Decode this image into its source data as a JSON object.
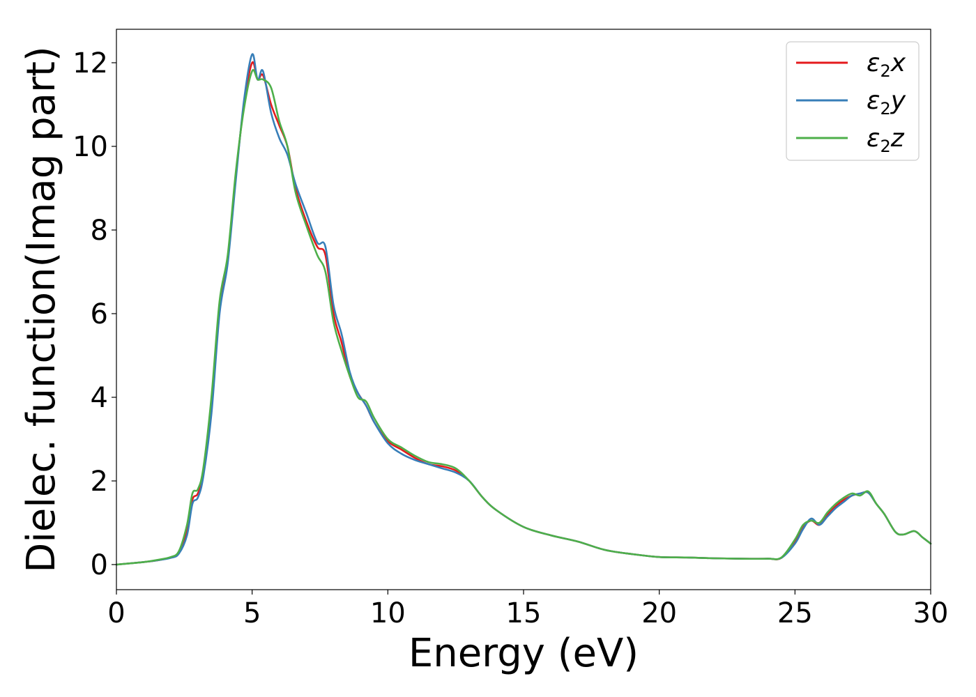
{
  "chart_data": {
    "type": "line",
    "xlabel": "Energy (eV)",
    "ylabel": "Dielec. function(Imag part)",
    "xlim": [
      0,
      30
    ],
    "ylim": [
      -0.6,
      12.8
    ],
    "xticks": [
      0,
      5,
      10,
      15,
      20,
      25,
      30
    ],
    "yticks": [
      0,
      2,
      4,
      6,
      8,
      10,
      12
    ],
    "grid": false,
    "legend_position": "top-right",
    "series": [
      {
        "name": "ε2x",
        "legend": {
          "base": "ε",
          "sub": "2",
          "suffix": "x"
        },
        "color": "#e41a1c",
        "x": [
          0,
          1,
          1.5,
          2,
          2.3,
          2.6,
          2.8,
          3.0,
          3.2,
          3.5,
          3.8,
          4.1,
          4.4,
          4.7,
          5.0,
          5.2,
          5.4,
          5.7,
          6.0,
          6.3,
          6.6,
          7.0,
          7.4,
          7.7,
          8.0,
          8.3,
          8.6,
          8.9,
          9.2,
          9.5,
          10.0,
          10.5,
          11.0,
          11.5,
          12.0,
          12.5,
          13.0,
          13.5,
          14.0,
          15.0,
          16.0,
          17.0,
          18.0,
          19.0,
          20.0,
          21.0,
          22.0,
          23.0,
          24.0,
          24.5,
          25.0,
          25.3,
          25.6,
          25.9,
          26.2,
          26.5,
          26.8,
          27.1,
          27.4,
          27.7,
          28.0,
          28.3,
          28.7,
          29.0,
          29.4,
          29.7,
          30.0
        ],
        "y": [
          0.0,
          0.06,
          0.1,
          0.17,
          0.28,
          0.8,
          1.55,
          1.7,
          2.2,
          3.8,
          6.2,
          7.3,
          9.3,
          11.0,
          12.0,
          11.6,
          11.7,
          11.0,
          10.5,
          10.0,
          9.0,
          8.2,
          7.6,
          7.4,
          6.0,
          5.3,
          4.5,
          4.1,
          3.8,
          3.4,
          2.95,
          2.75,
          2.55,
          2.4,
          2.35,
          2.25,
          2.0,
          1.6,
          1.3,
          0.9,
          0.7,
          0.55,
          0.35,
          0.25,
          0.18,
          0.17,
          0.15,
          0.14,
          0.14,
          0.16,
          0.55,
          0.9,
          1.05,
          0.95,
          1.2,
          1.4,
          1.55,
          1.65,
          1.7,
          1.72,
          1.45,
          1.2,
          0.78,
          0.72,
          0.8,
          0.65,
          0.5
        ]
      },
      {
        "name": "ε2y",
        "legend": {
          "base": "ε",
          "sub": "2",
          "suffix": "y"
        },
        "color": "#377eb8",
        "x": [
          0,
          1,
          1.5,
          2,
          2.3,
          2.6,
          2.8,
          3.0,
          3.2,
          3.5,
          3.8,
          4.1,
          4.4,
          4.7,
          5.0,
          5.2,
          5.4,
          5.7,
          6.0,
          6.3,
          6.6,
          7.0,
          7.4,
          7.7,
          8.0,
          8.3,
          8.6,
          8.9,
          9.2,
          9.5,
          10.0,
          10.5,
          11.0,
          11.5,
          12.0,
          12.5,
          13.0,
          13.5,
          14.0,
          15.0,
          16.0,
          17.0,
          18.0,
          19.0,
          20.0,
          21.0,
          22.0,
          23.0,
          24.0,
          24.5,
          25.0,
          25.3,
          25.6,
          25.9,
          26.2,
          26.5,
          26.8,
          27.1,
          27.4,
          27.7,
          28.0,
          28.3,
          28.7,
          29.0,
          29.4,
          29.7,
          30.0
        ],
        "y": [
          0.0,
          0.06,
          0.1,
          0.16,
          0.26,
          0.7,
          1.45,
          1.6,
          2.1,
          3.6,
          6.0,
          7.2,
          9.2,
          11.1,
          12.2,
          11.6,
          11.8,
          10.8,
          10.2,
          9.8,
          9.1,
          8.4,
          7.7,
          7.6,
          6.2,
          5.5,
          4.6,
          4.1,
          3.8,
          3.4,
          2.9,
          2.65,
          2.5,
          2.4,
          2.3,
          2.2,
          2.0,
          1.6,
          1.3,
          0.9,
          0.7,
          0.55,
          0.35,
          0.25,
          0.18,
          0.17,
          0.15,
          0.14,
          0.14,
          0.16,
          0.5,
          0.85,
          1.1,
          0.95,
          1.15,
          1.35,
          1.5,
          1.65,
          1.7,
          1.72,
          1.45,
          1.2,
          0.78,
          0.72,
          0.8,
          0.65,
          0.5
        ]
      },
      {
        "name": "ε2z",
        "legend": {
          "base": "ε",
          "sub": "2",
          "suffix": "z"
        },
        "color": "#4daf4a",
        "x": [
          0,
          1,
          1.5,
          2,
          2.3,
          2.6,
          2.8,
          3.0,
          3.2,
          3.5,
          3.8,
          4.1,
          4.4,
          4.7,
          5.0,
          5.2,
          5.4,
          5.7,
          6.0,
          6.3,
          6.6,
          7.0,
          7.4,
          7.7,
          8.0,
          8.3,
          8.6,
          8.9,
          9.2,
          9.5,
          10.0,
          10.5,
          11.0,
          11.5,
          12.0,
          12.5,
          13.0,
          13.5,
          14.0,
          15.0,
          16.0,
          17.0,
          18.0,
          19.0,
          20.0,
          21.0,
          22.0,
          23.0,
          24.0,
          24.5,
          25.0,
          25.3,
          25.6,
          25.9,
          26.2,
          26.5,
          26.8,
          27.1,
          27.4,
          27.7,
          28.0,
          28.3,
          28.7,
          29.0,
          29.4,
          29.7,
          30.0
        ],
        "y": [
          0.0,
          0.06,
          0.11,
          0.18,
          0.32,
          0.95,
          1.7,
          1.8,
          2.3,
          4.0,
          6.3,
          7.4,
          9.4,
          10.9,
          11.8,
          11.6,
          11.6,
          11.4,
          10.6,
          10.0,
          8.9,
          8.1,
          7.4,
          7.0,
          5.8,
          5.1,
          4.5,
          4.0,
          3.9,
          3.5,
          3.0,
          2.8,
          2.6,
          2.45,
          2.4,
          2.3,
          2.0,
          1.6,
          1.3,
          0.9,
          0.7,
          0.55,
          0.35,
          0.25,
          0.18,
          0.17,
          0.15,
          0.14,
          0.14,
          0.17,
          0.6,
          0.95,
          1.05,
          1.0,
          1.25,
          1.45,
          1.6,
          1.7,
          1.65,
          1.75,
          1.45,
          1.2,
          0.78,
          0.72,
          0.8,
          0.65,
          0.5
        ]
      }
    ]
  }
}
